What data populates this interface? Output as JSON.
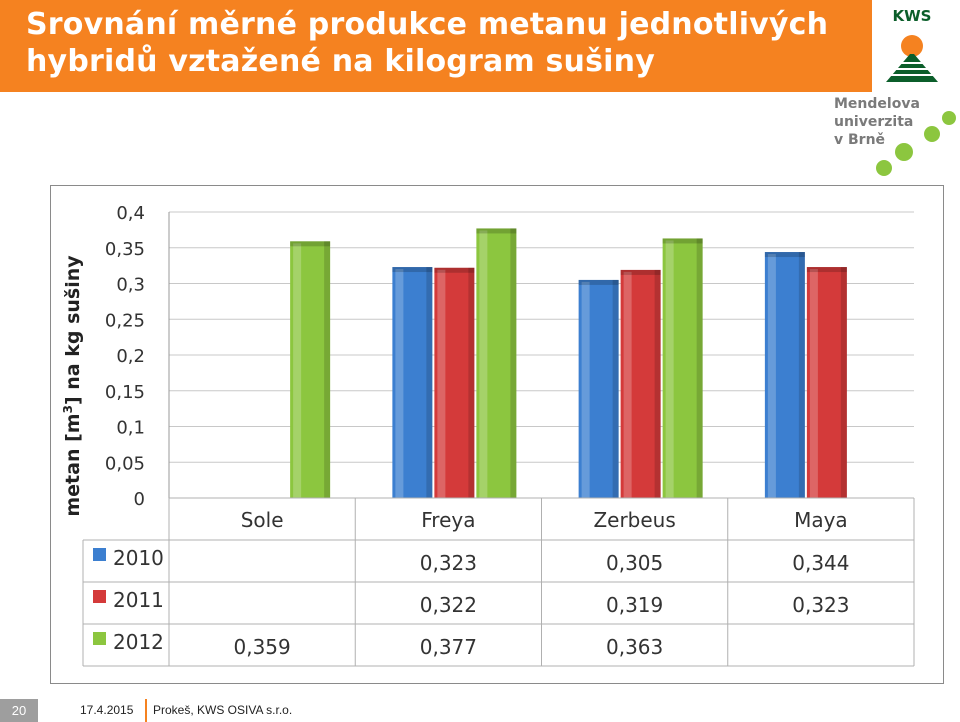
{
  "slide": {
    "title_line1": "Srovnání měrné produkce metanu jednotlivých",
    "title_line2": "hybridů vztažené na kilogram sušiny",
    "page_number": "20",
    "date": "17.4.2015",
    "author": "Prokeš, KWS OSIVA s.r.o."
  },
  "logos": {
    "kws_text": "KWS",
    "mendel_line1": "Mendelova",
    "mendel_line2": "univerzita",
    "mendel_line3": "v Brně"
  },
  "colors": {
    "accent": "#f58220",
    "series_2010": "#3c7fd0",
    "series_2011": "#d43a3a",
    "series_2012": "#8cc63f"
  },
  "chart_data": {
    "type": "bar",
    "ylabel_prefix": "metan [m",
    "ylabel_sup": "3",
    "ylabel_suffix": "] na kg sušiny",
    "ylim": [
      0,
      0.4
    ],
    "yticks": [
      "0",
      "0,05",
      "0,1",
      "0,15",
      "0,2",
      "0,25",
      "0,3",
      "0,35",
      "0,4"
    ],
    "grid": true,
    "categories": [
      "Sole",
      "Freya",
      "Zerbeus",
      "Maya"
    ],
    "series": [
      {
        "name": "2010",
        "values": [
          null,
          0.323,
          0.305,
          0.344
        ],
        "labels": [
          "",
          "0,323",
          "0,305",
          "0,344"
        ]
      },
      {
        "name": "2011",
        "values": [
          null,
          0.322,
          0.319,
          0.323
        ],
        "labels": [
          "",
          "0,322",
          "0,319",
          "0,323"
        ]
      },
      {
        "name": "2012",
        "values": [
          0.359,
          0.377,
          0.363,
          null
        ],
        "labels": [
          "0,359",
          "0,377",
          "0,363",
          ""
        ]
      }
    ],
    "legend": "data-table"
  }
}
